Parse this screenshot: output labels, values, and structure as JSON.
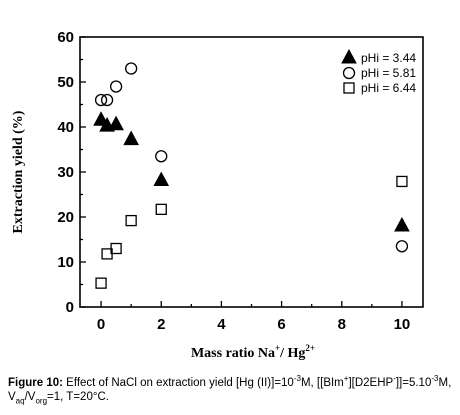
{
  "chart_data": {
    "type": "scatter",
    "xlabel": "Mass ratio Na",
    "xlabel_sup1": "+",
    "xlabel_mid": "/ Hg",
    "xlabel_sup2": "2+",
    "ylabel": "Extraction yield (%)",
    "xlim": [
      -0.7,
      10.7
    ],
    "ylim": [
      0,
      60
    ],
    "xticks": [
      "0",
      "2",
      "4",
      "6",
      "8",
      "10"
    ],
    "yticks": [
      "0",
      "10",
      "20",
      "30",
      "40",
      "50",
      "60"
    ],
    "grid": false,
    "legend_position": "top-right",
    "series": [
      {
        "name": "pHi = 3.44",
        "marker": "triangle-filled",
        "x": [
          0,
          0.2,
          0.5,
          1,
          2,
          10
        ],
        "y": [
          41.5,
          40.2,
          40.5,
          37.2,
          28.1,
          18
        ]
      },
      {
        "name": "pHi = 5.81",
        "marker": "circle-open",
        "x": [
          0,
          0.2,
          0.5,
          1,
          2,
          10
        ],
        "y": [
          46,
          46,
          49,
          53,
          33.5,
          13.5
        ]
      },
      {
        "name": "pHi = 6.44",
        "marker": "square-open",
        "x": [
          0,
          0.2,
          0.5,
          1,
          2,
          10
        ],
        "y": [
          5.3,
          11.8,
          13,
          19.2,
          21.7,
          27.9
        ]
      }
    ]
  },
  "caption": {
    "figure_label": "Figure 10:",
    "text_1": " Effect of NaCl on extraction yield [Hg (II)]=10",
    "sup_1": "-3",
    "text_2": "M, [[BIm",
    "sup_2": "+",
    "text_3": "][D2EHP",
    "sup_3": "-",
    "text_4": "]]=5.10",
    "sup_4": "-3",
    "text_5": "M, V",
    "sub_1": "aq",
    "text_6": "/V",
    "sub_2": "org",
    "text_7": "=1, T=20°C."
  }
}
